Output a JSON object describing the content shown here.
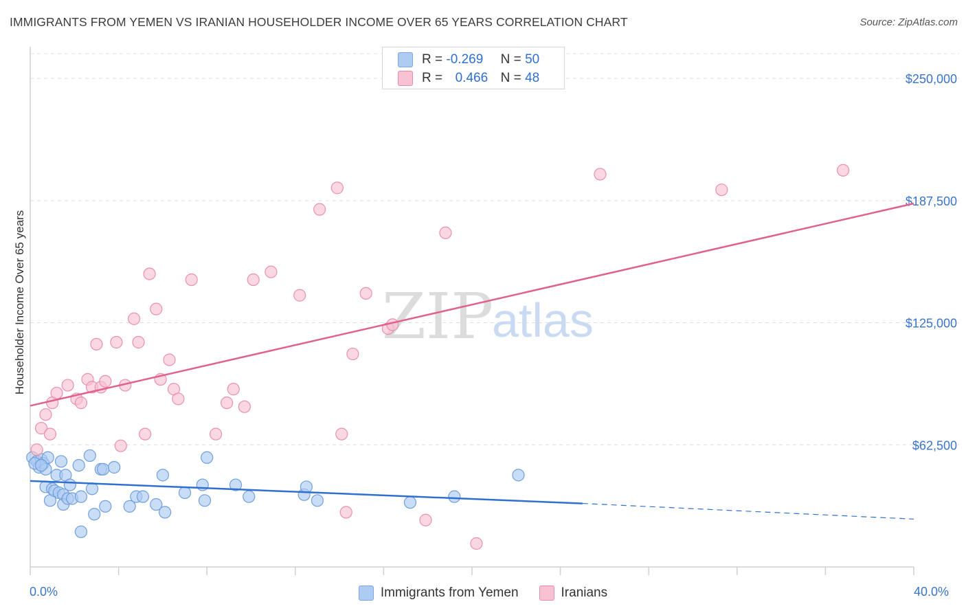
{
  "header": {
    "title": "IMMIGRANTS FROM YEMEN VS IRANIAN HOUSEHOLDER INCOME OVER 65 YEARS CORRELATION CHART",
    "source": "Source: ZipAtlas.com"
  },
  "watermark": {
    "zip": "ZIP",
    "atlas": "atlas"
  },
  "legend_stats": [
    {
      "r_label": "R =",
      "r_value": "-0.269",
      "n_label": "N =",
      "n_value": "50",
      "color": "#aecbf2",
      "border": "#7ba7e0"
    },
    {
      "r_label": "R =",
      "r_value": "0.466",
      "n_label": "N =",
      "n_value": "48",
      "color": "#f8c2d3",
      "border": "#e98aaa"
    }
  ],
  "colors": {
    "blue_point_fill": "#aecbf2",
    "blue_point_stroke": "#6f9fdc",
    "blue_line": "#2f6fcf",
    "pink_point_fill": "#f8c2d3",
    "pink_point_stroke": "#e990ad",
    "pink_line": "#e0628c",
    "grid": "#dedede",
    "tick_text": "#3a74c8"
  },
  "chart_data": {
    "type": "scatter",
    "title": "IMMIGRANTS FROM YEMEN VS IRANIAN HOUSEHOLDER INCOME OVER 65 YEARS CORRELATION CHART",
    "xlabel": "",
    "ylabel": "Householder Income Over 65 years",
    "xlim": [
      0,
      40
    ],
    "ylim": [
      0,
      262000
    ],
    "x_tick_labels": [
      "0.0%",
      "40.0%"
    ],
    "y_ticks": [
      62500,
      125000,
      187500,
      250000
    ],
    "y_tick_labels": [
      "$62,500",
      "$125,000",
      "$187,500",
      "$250,000"
    ],
    "grid": "horizontal dashed",
    "legend_position": "top-center and bottom",
    "series": [
      {
        "name": "Immigrants from Yemen",
        "points": [
          [
            0.1,
            56000
          ],
          [
            0.3,
            54000
          ],
          [
            0.4,
            51000
          ],
          [
            0.5,
            55000
          ],
          [
            0.6,
            53000
          ],
          [
            0.7,
            50000
          ],
          [
            0.7,
            41000
          ],
          [
            0.8,
            56000
          ],
          [
            0.9,
            34000
          ],
          [
            1.0,
            40000
          ],
          [
            1.1,
            39000
          ],
          [
            1.2,
            47000
          ],
          [
            1.3,
            38000
          ],
          [
            1.4,
            54000
          ],
          [
            1.5,
            37000
          ],
          [
            1.5,
            32000
          ],
          [
            1.6,
            47000
          ],
          [
            1.7,
            35000
          ],
          [
            1.8,
            42000
          ],
          [
            1.9,
            35000
          ],
          [
            2.2,
            52000
          ],
          [
            2.3,
            36000
          ],
          [
            2.7,
            57000
          ],
          [
            2.8,
            40000
          ],
          [
            2.9,
            27000
          ],
          [
            3.2,
            50000
          ],
          [
            3.3,
            50000
          ],
          [
            3.4,
            31000
          ],
          [
            3.8,
            51000
          ],
          [
            4.5,
            31000
          ],
          [
            4.8,
            36000
          ],
          [
            5.1,
            36000
          ],
          [
            5.7,
            32000
          ],
          [
            6.0,
            47000
          ],
          [
            6.1,
            28000
          ],
          [
            7.0,
            38000
          ],
          [
            7.8,
            42000
          ],
          [
            7.9,
            34000
          ],
          [
            8.0,
            56000
          ],
          [
            9.3,
            42000
          ],
          [
            9.9,
            36000
          ],
          [
            12.4,
            37000
          ],
          [
            12.5,
            41000
          ],
          [
            13.0,
            34000
          ],
          [
            17.2,
            33000
          ],
          [
            19.2,
            36000
          ],
          [
            22.1,
            47000
          ],
          [
            2.3,
            18000
          ],
          [
            0.2,
            53000
          ],
          [
            0.5,
            52000
          ]
        ],
        "trend": {
          "x0": 0,
          "y0": 44000,
          "x1": 25,
          "y1": 32500,
          "dashed_to_x": 40,
          "dashed_y": 24500
        }
      },
      {
        "name": "Iranians",
        "points": [
          [
            0.3,
            60000
          ],
          [
            0.5,
            71000
          ],
          [
            0.7,
            78000
          ],
          [
            0.9,
            68000
          ],
          [
            1.0,
            84000
          ],
          [
            1.2,
            89000
          ],
          [
            1.7,
            93000
          ],
          [
            2.1,
            86000
          ],
          [
            2.3,
            84000
          ],
          [
            2.6,
            96000
          ],
          [
            2.8,
            92000
          ],
          [
            3.0,
            114000
          ],
          [
            3.2,
            92000
          ],
          [
            3.4,
            95000
          ],
          [
            3.9,
            115000
          ],
          [
            4.1,
            62000
          ],
          [
            4.3,
            93000
          ],
          [
            4.7,
            127000
          ],
          [
            4.9,
            115000
          ],
          [
            5.2,
            68000
          ],
          [
            5.4,
            150000
          ],
          [
            5.7,
            132000
          ],
          [
            5.9,
            96000
          ],
          [
            6.3,
            106000
          ],
          [
            6.5,
            91000
          ],
          [
            6.7,
            86000
          ],
          [
            7.3,
            147000
          ],
          [
            8.4,
            68000
          ],
          [
            8.9,
            84000
          ],
          [
            9.2,
            91000
          ],
          [
            9.7,
            82000
          ],
          [
            10.1,
            147000
          ],
          [
            10.9,
            151000
          ],
          [
            12.2,
            139000
          ],
          [
            13.1,
            183000
          ],
          [
            13.9,
            194000
          ],
          [
            14.1,
            68000
          ],
          [
            14.3,
            28000
          ],
          [
            14.6,
            109000
          ],
          [
            15.2,
            140000
          ],
          [
            16.2,
            122000
          ],
          [
            16.4,
            124000
          ],
          [
            17.9,
            24000
          ],
          [
            18.8,
            171000
          ],
          [
            20.2,
            12000
          ],
          [
            25.8,
            201000
          ],
          [
            31.3,
            193000
          ],
          [
            36.8,
            203000
          ]
        ],
        "trend": {
          "x0": 0,
          "y0": 82500,
          "x1": 40,
          "y1": 186000
        }
      }
    ]
  }
}
